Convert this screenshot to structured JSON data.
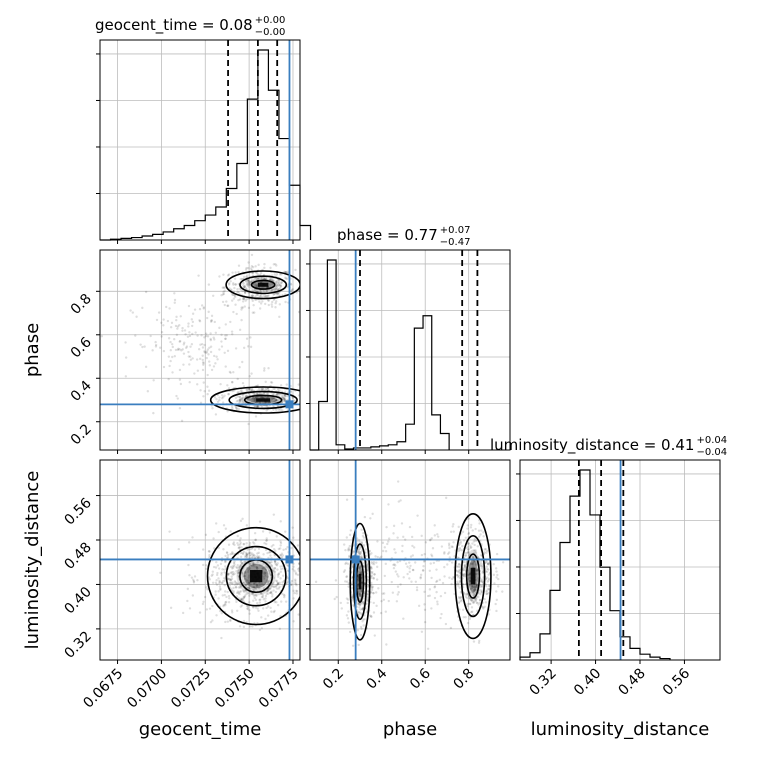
{
  "chart_data": {
    "type": "corner",
    "colors": {
      "truth": "#3a7ebf",
      "hist": "#000000",
      "grid": "#bdbdbd",
      "quantile": "#000000"
    },
    "parameters": [
      "geocent_time",
      "phase",
      "luminosity_distance"
    ],
    "truths": {
      "geocent_time": 0.0773,
      "phase": 0.28,
      "luminosity_distance": 0.445
    },
    "axes": {
      "geocent_time": {
        "range": [
          0.0665,
          0.0779
        ],
        "ticks": [
          0.0675,
          0.07,
          0.0725,
          0.075,
          0.0775
        ],
        "tick_labels": [
          "0.0675",
          "0.0700",
          "0.0725",
          "0.0750",
          "0.0775"
        ]
      },
      "phase": {
        "range": [
          0.07,
          0.99
        ],
        "ticks": [
          0.2,
          0.4,
          0.6,
          0.8
        ],
        "tick_labels": [
          "0.2",
          "0.4",
          "0.6",
          "0.8"
        ]
      },
      "luminosity_distance": {
        "range": [
          0.264,
          0.624
        ],
        "ticks": [
          0.32,
          0.4,
          0.48,
          0.56
        ],
        "tick_labels": [
          "0.32",
          "0.40",
          "0.48",
          "0.56"
        ]
      }
    },
    "axis_labels": {
      "geocent_time": "geocent_time",
      "phase": "phase",
      "luminosity_distance": "luminosity_distance"
    },
    "titles": [
      {
        "param": "geocent_time",
        "text": "geocent_time = 0.08",
        "plus": "+0.00",
        "minus": "−0.00"
      },
      {
        "param": "phase",
        "text": "phase = 0.77",
        "plus": "+0.07",
        "minus": "−0.47"
      },
      {
        "param": "luminosity_distance",
        "text": "luminosity_distance = 0.41",
        "plus": "+0.04",
        "minus": "−0.04"
      }
    ],
    "quantiles": {
      "geocent_time": [
        0.0738,
        0.0755,
        0.0766
      ],
      "phase": [
        0.3,
        0.77,
        0.84
      ],
      "luminosity_distance": [
        0.37,
        0.41,
        0.45
      ]
    },
    "histograms": {
      "geocent_time": {
        "edges_start": 0.0665,
        "bin_width": 0.0006,
        "counts": [
          0,
          1,
          2,
          3,
          5,
          7,
          10,
          14,
          18,
          24,
          31,
          41,
          64,
          95,
          175,
          236,
          186,
          126,
          68,
          18
        ]
      },
      "phase": {
        "edges_start": 0.07,
        "bin_width": 0.04,
        "counts": [
          0,
          47,
          184,
          5,
          1,
          2,
          2,
          3,
          4,
          5,
          8,
          25,
          118,
          130,
          34,
          16
        ]
      },
      "luminosity_distance": {
        "edges_start": 0.264,
        "bin_width": 0.018,
        "counts": [
          2,
          5,
          18,
          48,
          81,
          113,
          131,
          100,
          64,
          34,
          16,
          8,
          4,
          2,
          1
        ]
      }
    },
    "scatter_blobs": [
      {
        "x": "geocent_time",
        "y": "phase",
        "cx": 0.0756,
        "cy": 0.82,
        "sx": 0.001,
        "sy": 0.045,
        "n": 420
      },
      {
        "x": "geocent_time",
        "y": "phase",
        "cx": 0.0756,
        "cy": 0.31,
        "sx": 0.0011,
        "sy": 0.03,
        "n": 420
      },
      {
        "x": "geocent_time",
        "y": "phase",
        "cx": 0.072,
        "cy": 0.55,
        "sx": 0.0018,
        "sy": 0.11,
        "n": 220
      },
      {
        "x": "geocent_time",
        "y": "luminosity_distance",
        "cx": 0.0752,
        "cy": 0.415,
        "sx": 0.0014,
        "sy": 0.038,
        "n": 800
      },
      {
        "x": "phase",
        "y": "luminosity_distance",
        "cx": 0.3,
        "cy": 0.41,
        "sx": 0.03,
        "sy": 0.04,
        "n": 450
      },
      {
        "x": "phase",
        "y": "luminosity_distance",
        "cx": 0.82,
        "cy": 0.42,
        "sx": 0.045,
        "sy": 0.04,
        "n": 450
      },
      {
        "x": "phase",
        "y": "luminosity_distance",
        "cx": 0.55,
        "cy": 0.42,
        "sx": 0.18,
        "sy": 0.05,
        "n": 220
      }
    ],
    "density_cores": [
      {
        "x": "geocent_time",
        "y": "phase",
        "cx": 0.0758,
        "cy": 0.83,
        "sx": 0.0006,
        "sy": 0.018,
        "levels": [
          0.5,
          1.0,
          1.6
        ]
      },
      {
        "x": "geocent_time",
        "y": "phase",
        "cx": 0.0758,
        "cy": 0.3,
        "sx": 0.0008,
        "sy": 0.016,
        "levels": [
          0.6,
          1.1,
          1.7
        ]
      },
      {
        "x": "geocent_time",
        "y": "luminosity_distance",
        "cx": 0.0754,
        "cy": 0.415,
        "sx": 0.0007,
        "sy": 0.022,
        "levels": [
          0.6,
          1.1,
          1.8
        ]
      },
      {
        "x": "phase",
        "y": "luminosity_distance",
        "cx": 0.3,
        "cy": 0.405,
        "sx": 0.012,
        "sy": 0.028,
        "levels": [
          0.6,
          1.1,
          1.7
        ]
      },
      {
        "x": "phase",
        "y": "luminosity_distance",
        "cx": 0.82,
        "cy": 0.415,
        "sx": 0.022,
        "sy": 0.03,
        "levels": [
          0.6,
          1.1,
          1.7
        ]
      }
    ]
  }
}
